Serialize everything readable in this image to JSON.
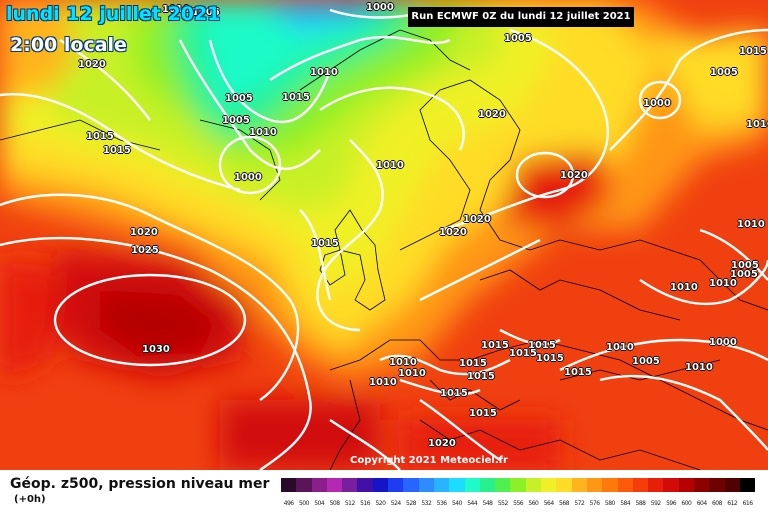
{
  "header": {
    "date": "lundi 12 juillet 2021",
    "time": "2:00 locale",
    "run": "Run ECMWF 0Z du lundi 12 juillet 2021"
  },
  "copyright": "Copyright 2021 Meteociel.fr",
  "footer": {
    "title": "Géop. z500, pression niveau mer",
    "subtitle": "(+0h)"
  },
  "legend": {
    "values": [
      "496",
      "500",
      "504",
      "508",
      "512",
      "516",
      "520",
      "524",
      "528",
      "532",
      "536",
      "540",
      "544",
      "548",
      "552",
      "556",
      "560",
      "564",
      "568",
      "572",
      "576",
      "580",
      "584",
      "588",
      "592",
      "596",
      "600",
      "604",
      "608",
      "612",
      "616"
    ],
    "colors": [
      "#2a0a2a",
      "#5a145a",
      "#8c1e8c",
      "#b428b4",
      "#7a1ea0",
      "#4010a8",
      "#1414c8",
      "#1e3cf0",
      "#2864ff",
      "#2d8cff",
      "#28b4ff",
      "#1edcff",
      "#1efac8",
      "#28f08c",
      "#50f050",
      "#8cf028",
      "#c8f028",
      "#f0f028",
      "#ffdc28",
      "#ffb41e",
      "#ff9614",
      "#ff780a",
      "#ff5a0a",
      "#f53c0a",
      "#e61e0a",
      "#d20a0a",
      "#b40000",
      "#8c0000",
      "#6e0000",
      "#500000",
      "#000000"
    ]
  },
  "isobars": [
    {
      "v": "1010",
      "cls": "l"
    },
    {
      "v": "1005",
      "cls": "l"
    },
    {
      "v": "1000",
      "cls": "l"
    },
    {
      "v": "1020",
      "cls": "l"
    },
    {
      "v": "1010",
      "cls": "l"
    },
    {
      "v": "1015",
      "cls": "l"
    },
    {
      "v": "1005",
      "cls": "l"
    },
    {
      "v": "1005",
      "cls": "l"
    },
    {
      "v": "1010",
      "cls": "l"
    },
    {
      "v": "1000",
      "cls": "l"
    },
    {
      "v": "1015",
      "cls": "l"
    },
    {
      "v": "1015",
      "cls": "l"
    },
    {
      "v": "1020",
      "cls": "l"
    },
    {
      "v": "1025",
      "cls": "l"
    },
    {
      "v": "1030",
      "cls": "l"
    },
    {
      "v": "1005",
      "cls": "l"
    },
    {
      "v": "1015",
      "cls": "l"
    },
    {
      "v": "1005",
      "cls": "l"
    },
    {
      "v": "1000",
      "cls": "l"
    },
    {
      "v": "1020",
      "cls": "l"
    },
    {
      "v": "1010",
      "cls": "l"
    },
    {
      "v": "1020",
      "cls": "l"
    },
    {
      "v": "1020",
      "cls": "l"
    },
    {
      "v": "1020",
      "cls": "l"
    },
    {
      "v": "1015",
      "cls": "l"
    },
    {
      "v": "1010",
      "cls": "l"
    },
    {
      "v": "1010",
      "cls": "l"
    },
    {
      "v": "1005",
      "cls": "l"
    },
    {
      "v": "1005",
      "cls": "l"
    },
    {
      "v": "1010",
      "cls": "l"
    },
    {
      "v": "1010",
      "cls": "l"
    },
    {
      "v": "1010",
      "cls": "l"
    },
    {
      "v": "1000",
      "cls": "l"
    },
    {
      "v": "1005",
      "cls": "l"
    },
    {
      "v": "1010",
      "cls": "l"
    },
    {
      "v": "1010",
      "cls": "l"
    },
    {
      "v": "1010",
      "cls": "l"
    },
    {
      "v": "1010",
      "cls": "l"
    },
    {
      "v": "1015",
      "cls": "l"
    },
    {
      "v": "1015",
      "cls": "l"
    },
    {
      "v": "1015",
      "cls": "l"
    },
    {
      "v": "1015",
      "cls": "l"
    },
    {
      "v": "1015",
      "cls": "l"
    },
    {
      "v": "1015",
      "cls": "l"
    },
    {
      "v": "1015",
      "cls": "l"
    },
    {
      "v": "1015",
      "cls": "l"
    },
    {
      "v": "1020",
      "cls": "l"
    },
    {
      "v": "1015",
      "cls": "l"
    }
  ]
}
